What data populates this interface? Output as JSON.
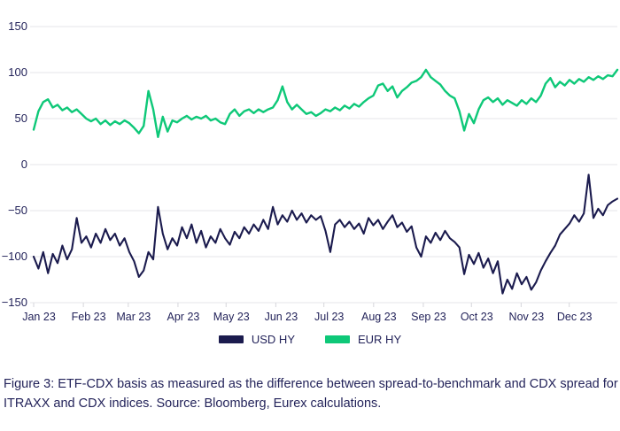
{
  "legend": {
    "items": [
      {
        "label": "USD HY",
        "color": "#1b1b4e"
      },
      {
        "label": "EUR HY",
        "color": "#0ec878"
      }
    ]
  },
  "caption": {
    "text": "Figure 3: ETF-CDX basis as measured as the difference between spread-to-benchmark and CDX spread for ITRAXX and CDX indices. Source: Bloomberg, Eurex calculations."
  },
  "colors": {
    "usd_hy": "#1b1b4e",
    "eur_hy": "#0ec878",
    "gridline": "#e5e5e8",
    "axis_tick": "#d6d6db",
    "text": "#23235a"
  },
  "chart_data": {
    "type": "line",
    "title": "",
    "xlabel": "",
    "ylabel": "",
    "ylim": [
      -150,
      150
    ],
    "y_ticks": [
      150,
      100,
      50,
      0,
      -50,
      -100,
      -150
    ],
    "x_tick_labels": [
      "Jan 23",
      "Feb 23",
      "Mar 23",
      "Apr 23",
      "May 23",
      "Jun 23",
      "Jul 23",
      "Aug 23",
      "Sep 23",
      "Oct 23",
      "Nov 23",
      "Dec 23"
    ],
    "grid": "horizontal",
    "legend_position": "bottom-center",
    "series": [
      {
        "name": "USD HY",
        "color": "#1b1b4e",
        "values": [
          -100,
          -113,
          -95,
          -118,
          -97,
          -107,
          -88,
          -103,
          -92,
          -58,
          -85,
          -78,
          -90,
          -75,
          -85,
          -70,
          -82,
          -75,
          -88,
          -80,
          -95,
          -105,
          -122,
          -115,
          -95,
          -103,
          -46,
          -75,
          -92,
          -80,
          -88,
          -68,
          -80,
          -65,
          -85,
          -72,
          -90,
          -78,
          -85,
          -70,
          -80,
          -87,
          -73,
          -80,
          -68,
          -75,
          -65,
          -72,
          -60,
          -70,
          -46,
          -65,
          -55,
          -62,
          -50,
          -60,
          -53,
          -63,
          -55,
          -60,
          -56,
          -72,
          -95,
          -65,
          -60,
          -68,
          -62,
          -70,
          -64,
          -75,
          -58,
          -66,
          -60,
          -70,
          -62,
          -55,
          -68,
          -63,
          -73,
          -67,
          -90,
          -100,
          -78,
          -85,
          -74,
          -82,
          -72,
          -80,
          -84,
          -90,
          -119,
          -98,
          -108,
          -96,
          -112,
          -102,
          -118,
          -105,
          -140,
          -125,
          -135,
          -118,
          -130,
          -122,
          -136,
          -128,
          -115,
          -105,
          -96,
          -88,
          -76,
          -70,
          -64,
          -55,
          -62,
          -53,
          -11,
          -58,
          -48,
          -55,
          -44,
          -40,
          -37
        ]
      },
      {
        "name": "EUR HY",
        "color": "#0ec878",
        "values": [
          38,
          58,
          68,
          71,
          62,
          65,
          59,
          62,
          57,
          60,
          55,
          50,
          47,
          50,
          44,
          48,
          43,
          47,
          44,
          48,
          45,
          40,
          34,
          42,
          80,
          60,
          30,
          52,
          36,
          48,
          46,
          50,
          53,
          49,
          52,
          50,
          53,
          48,
          50,
          46,
          44,
          55,
          60,
          53,
          58,
          60,
          56,
          60,
          57,
          60,
          62,
          70,
          85,
          68,
          60,
          65,
          60,
          55,
          57,
          53,
          56,
          60,
          58,
          62,
          59,
          64,
          61,
          66,
          63,
          68,
          72,
          75,
          86,
          88,
          80,
          85,
          73,
          80,
          84,
          89,
          91,
          95,
          103,
          95,
          91,
          87,
          80,
          75,
          72,
          58,
          37,
          55,
          45,
          60,
          70,
          73,
          68,
          72,
          65,
          70,
          67,
          64,
          70,
          66,
          72,
          68,
          75,
          88,
          94,
          84,
          90,
          86,
          92,
          88,
          93,
          90,
          95,
          92,
          96,
          93,
          97,
          96,
          103
        ]
      }
    ]
  }
}
